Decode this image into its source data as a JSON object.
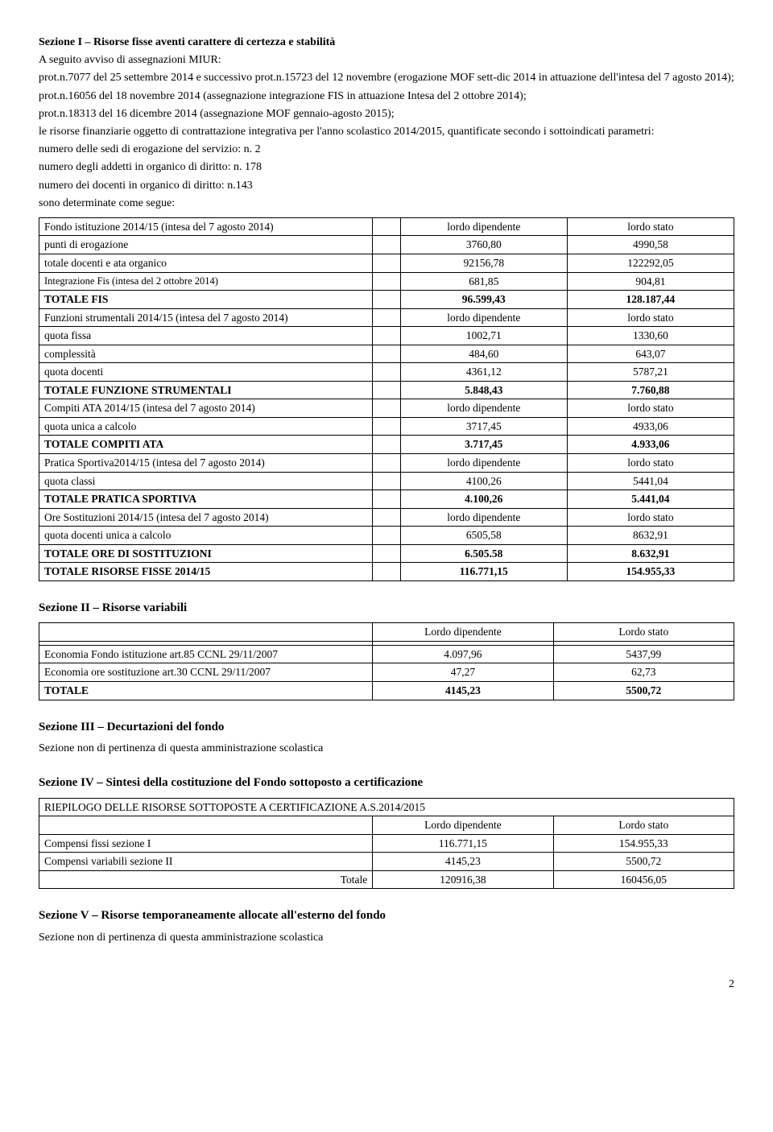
{
  "sezione1": {
    "title": "Sezione I – Risorse fisse aventi carattere di certezza e stabilità",
    "intro_lines": [
      "A seguito avviso di assegnazioni MIUR:",
      "prot.n.7077 del 25 settembre 2014 e successivo prot.n.15723 del 12 novembre (erogazione MOF sett-dic 2014 in attuazione dell'intesa del 7 agosto 2014);",
      "prot.n.16056 del 18 novembre 2014 (assegnazione integrazione FIS in attuazione Intesa del 2 ottobre 2014);",
      "prot.n.18313 del 16 dicembre 2014 (assegnazione MOF gennaio-agosto 2015);",
      "le risorse finanziarie oggetto di contrattazione integrativa per l'anno scolastico 2014/2015, quantificate secondo i sottoindicati parametri:",
      "numero delle sedi di erogazione del servizio: n. 2",
      "numero degli addetti in organico di diritto: n. 178",
      "numero dei docenti in organico di diritto: n.143",
      "sono determinate come segue:"
    ],
    "table": [
      {
        "label": "Fondo istituzione 2014/15 (intesa del 7 agosto 2014)",
        "v1": "lordo dipendente",
        "v2": "lordo stato"
      },
      {
        "label": "punti di erogazione",
        "v1": "3760,80",
        "v2": "4990,58"
      },
      {
        "label": "totale docenti e ata organico",
        "v1": "92156,78",
        "v2": "122292,05"
      },
      {
        "label": "Integrazione Fis (intesa del 2 ottobre 2014)",
        "v1": "681,85",
        "v2": "904,81",
        "label_small": true
      },
      {
        "label": "TOTALE   FIS",
        "v1": "96.599,43",
        "v2": "128.187,44",
        "bold": true
      },
      {
        "label": "Funzioni strumentali     2014/15 (intesa del 7 agosto 2014)",
        "v1": "lordo dipendente",
        "v2": "lordo stato"
      },
      {
        "label": "quota fissa",
        "v1": "1002,71",
        "v2": "1330,60"
      },
      {
        "label": "complessità",
        "v1": "484,60",
        "v2": "643,07"
      },
      {
        "label": "quota docenti",
        "v1": "4361,12",
        "v2": "5787,21"
      },
      {
        "label": "TOTALE FUNZIONE STRUMENTALI",
        "v1": "5.848,43",
        "v2": "7.760,88",
        "bold": true
      },
      {
        "label": "Compiti ATA   2014/15 (intesa del 7 agosto 2014)",
        "v1": "lordo dipendente",
        "v2": "lordo stato"
      },
      {
        "label": "quota unica a calcolo",
        "v1": "3717,45",
        "v2": "4933,06"
      },
      {
        "label": "TOTALE COMPITI ATA",
        "v1": "3.717,45",
        "v2": "4.933,06",
        "bold": true
      },
      {
        "label": "Pratica Sportiva2014/15 (intesa del 7 agosto 2014)",
        "v1": "lordo dipendente",
        "v2": "lordo stato"
      },
      {
        "label": "quota classi",
        "v1": "4100,26",
        "v2": "5441,04"
      },
      {
        "label": "TOTALE PRATICA SPORTIVA",
        "v1": "4.100,26",
        "v2": "5.441,04",
        "bold": true
      },
      {
        "label": "Ore  Sostituzioni  2014/15 (intesa del 7 agosto 2014)",
        "v1": "lordo dipendente",
        "v2": "lordo stato"
      },
      {
        "label": "quota docenti unica a calcolo",
        "v1": "6505,58",
        "v2": "8632,91"
      },
      {
        "label": "TOTALE ORE DI SOSTITUZIONI",
        "v1": "6.505.58",
        "v2": "8.632,91",
        "bold": true
      },
      {
        "label": "TOTALE RISORSE FISSE 2014/15",
        "v1": "116.771,15",
        "v2": "154.955,33",
        "bold": true
      }
    ]
  },
  "sezione2": {
    "title": "Sezione II  – Risorse variabili",
    "table": [
      {
        "label": "",
        "v1": "Lordo dipendente",
        "v2": "Lordo stato"
      },
      {
        "label": "",
        "v1": "",
        "v2": ""
      },
      {
        "label": "Economia Fondo istituzione  art.85 CCNL 29/11/2007",
        "v1": "4.097,96",
        "v2": "5437,99"
      },
      {
        "label": "Economia ore sostituzione  art.30 CCNL 29/11/2007",
        "v1": "47,27",
        "v2": "62,73"
      },
      {
        "label": "TOTALE",
        "v1": "4145,23",
        "v2": "5500,72",
        "bold": true
      }
    ]
  },
  "sezione3": {
    "title": "Sezione III – Decurtazioni del fondo",
    "text": "Sezione non di pertinenza di questa amministrazione scolastica"
  },
  "sezione4": {
    "title": "Sezione IV – Sintesi della costituzione del Fondo sottoposto a certificazione",
    "table": [
      {
        "label": "RIEPILOGO DELLE RISORSE SOTTOPOSTE A CERTIFICAZIONE A.S.2014/2015",
        "span": true
      },
      {
        "label": "",
        "v1": "Lordo dipendente",
        "v2": "Lordo stato"
      },
      {
        "label": "Compensi  fissi        sezione I",
        "v1": "116.771,15",
        "v2": "154.955,33"
      },
      {
        "label": "Compensi variabili    sezione II",
        "v1": "4145,23",
        "v2": "5500,72"
      },
      {
        "label": "Totale",
        "v1": "120916,38",
        "v2": "160456,05",
        "label_right": true
      }
    ]
  },
  "sezione5": {
    "title": "Sezione V – Risorse temporaneamente allocate all'esterno del fondo",
    "text": "Sezione non di pertinenza di questa amministrazione scolastica"
  },
  "page_number": "2"
}
